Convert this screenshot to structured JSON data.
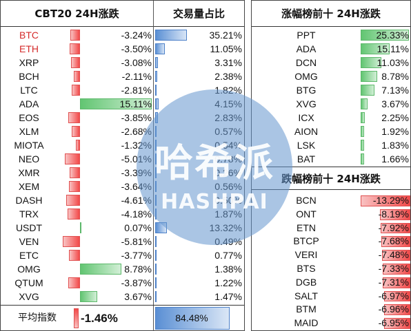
{
  "left_table": {
    "col_change_header": "CBT20 24H涨跌",
    "col_volume_header": "交易量占比",
    "rows": [
      {
        "name": "BTC",
        "change": "-3.24%",
        "change_value": -3.24,
        "volume": "35.21%",
        "volume_value": 35.21,
        "highlight": true
      },
      {
        "name": "ETH",
        "change": "-3.50%",
        "change_value": -3.5,
        "volume": "11.05%",
        "volume_value": 11.05,
        "highlight": true
      },
      {
        "name": "XRP",
        "change": "-3.08%",
        "change_value": -3.08,
        "volume": "3.31%",
        "volume_value": 3.31,
        "highlight": false
      },
      {
        "name": "BCH",
        "change": "-2.11%",
        "change_value": -2.11,
        "volume": "2.38%",
        "volume_value": 2.38,
        "highlight": false
      },
      {
        "name": "LTC",
        "change": "-2.81%",
        "change_value": -2.81,
        "volume": "1.82%",
        "volume_value": 1.82,
        "highlight": false
      },
      {
        "name": "ADA",
        "change": "15.11%",
        "change_value": 15.11,
        "volume": "4.15%",
        "volume_value": 4.15,
        "highlight": false
      },
      {
        "name": "EOS",
        "change": "-3.85%",
        "change_value": -3.85,
        "volume": "2.83%",
        "volume_value": 2.83,
        "highlight": false
      },
      {
        "name": "XLM",
        "change": "-2.68%",
        "change_value": -2.68,
        "volume": "0.57%",
        "volume_value": 0.57,
        "highlight": false
      },
      {
        "name": "MIOTA",
        "change": "-1.32%",
        "change_value": -1.32,
        "volume": "0.54%",
        "volume_value": 0.54,
        "highlight": false
      },
      {
        "name": "NEO",
        "change": "-5.01%",
        "change_value": -5.01,
        "volume": "0.78%",
        "volume_value": 0.78,
        "highlight": false
      },
      {
        "name": "XMR",
        "change": "-3.39%",
        "change_value": -3.39,
        "volume": "0.26%",
        "volume_value": 0.26,
        "highlight": false
      },
      {
        "name": "XEM",
        "change": "-3.64%",
        "change_value": -3.64,
        "volume": "0.56%",
        "volume_value": 0.56,
        "highlight": false
      },
      {
        "name": "DASH",
        "change": "-4.61%",
        "change_value": -4.61,
        "volume": "0.50%",
        "volume_value": 0.5,
        "highlight": false
      },
      {
        "name": "TRX",
        "change": "-4.18%",
        "change_value": -4.18,
        "volume": "1.87%",
        "volume_value": 1.87,
        "highlight": false
      },
      {
        "name": "USDT",
        "change": "0.07%",
        "change_value": 0.07,
        "volume": "13.32%",
        "volume_value": 13.32,
        "highlight": false
      },
      {
        "name": "VEN",
        "change": "-5.81%",
        "change_value": -5.81,
        "volume": "0.49%",
        "volume_value": 0.49,
        "highlight": false
      },
      {
        "name": "ETC",
        "change": "-3.77%",
        "change_value": -3.77,
        "volume": "0.77%",
        "volume_value": 0.77,
        "highlight": false
      },
      {
        "name": "OMG",
        "change": "8.78%",
        "change_value": 8.78,
        "volume": "1.38%",
        "volume_value": 1.38,
        "highlight": false
      },
      {
        "name": "QTUM",
        "change": "-3.87%",
        "change_value": -3.87,
        "volume": "1.22%",
        "volume_value": 1.22,
        "highlight": false
      },
      {
        "name": "XVG",
        "change": "3.67%",
        "change_value": 3.67,
        "volume": "1.47%",
        "volume_value": 1.47,
        "highlight": false
      }
    ],
    "average": {
      "label": "平均指数",
      "change": "-1.46%",
      "volume": "84.48%"
    }
  },
  "gainers": {
    "header": "涨幅榜前十 24H涨跌",
    "rows": [
      {
        "name": "PPT",
        "change": "25.33%",
        "change_value": 25.33
      },
      {
        "name": "ADA",
        "change": "15.11%",
        "change_value": 15.11
      },
      {
        "name": "DCN",
        "change": "11.03%",
        "change_value": 11.03
      },
      {
        "name": "OMG",
        "change": "8.78%",
        "change_value": 8.78
      },
      {
        "name": "BTG",
        "change": "7.13%",
        "change_value": 7.13
      },
      {
        "name": "XVG",
        "change": "3.67%",
        "change_value": 3.67
      },
      {
        "name": "ICX",
        "change": "2.25%",
        "change_value": 2.25
      },
      {
        "name": "AION",
        "change": "1.92%",
        "change_value": 1.92
      },
      {
        "name": "LSK",
        "change": "1.83%",
        "change_value": 1.83
      },
      {
        "name": "BAT",
        "change": "1.66%",
        "change_value": 1.66
      }
    ]
  },
  "losers": {
    "header": "跌幅榜前十 24H涨跌",
    "rows": [
      {
        "name": "BCN",
        "change": "-13.29%",
        "change_value": -13.29
      },
      {
        "name": "ONT",
        "change": "-8.19%",
        "change_value": -8.19
      },
      {
        "name": "ETN",
        "change": "-7.92%",
        "change_value": -7.92
      },
      {
        "name": "BTCP",
        "change": "-7.68%",
        "change_value": -7.68
      },
      {
        "name": "VERI",
        "change": "-7.48%",
        "change_value": -7.48
      },
      {
        "name": "BTS",
        "change": "-7.33%",
        "change_value": -7.33
      },
      {
        "name": "DGB",
        "change": "-7.31%",
        "change_value": -7.31
      },
      {
        "name": "SALT",
        "change": "-6.97%",
        "change_value": -6.97
      },
      {
        "name": "BTM",
        "change": "-6.96%",
        "change_value": -6.96
      },
      {
        "name": "MAID",
        "change": "-6.95%",
        "change_value": -6.95
      }
    ]
  },
  "watermark": {
    "cn": "哈希派",
    "en": "HASHPAI"
  },
  "colors": {
    "negative": "#f24a4a",
    "positive": "#62c572",
    "volume": "#5a8fd4",
    "highlight_text": "#d42a2a"
  }
}
